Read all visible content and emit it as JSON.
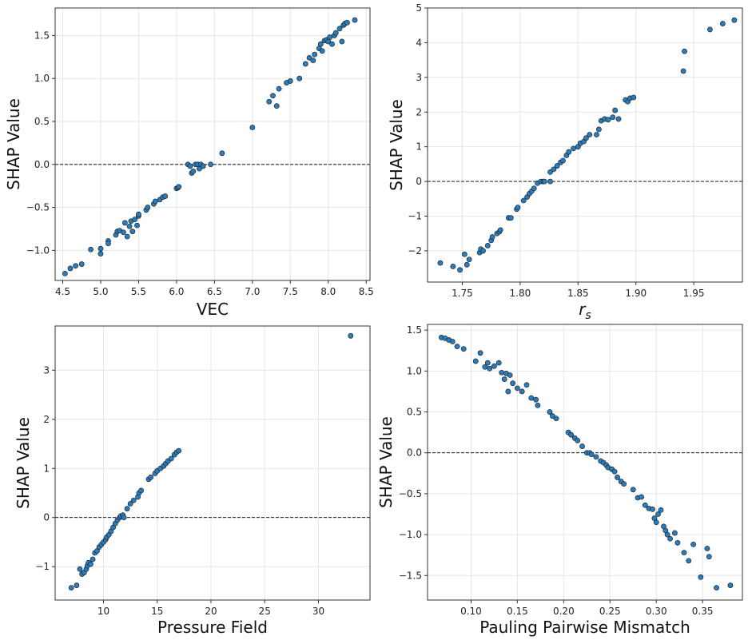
{
  "chart_data": [
    {
      "type": "scatter",
      "xlabel": "VEC",
      "ylabel": "SHAP Value",
      "xlim": [
        4.4,
        8.55
      ],
      "ylim": [
        -1.35,
        1.82
      ],
      "xticks": [
        4.5,
        5.0,
        5.5,
        6.0,
        6.5,
        7.0,
        7.5,
        8.0,
        8.5
      ],
      "xtick_labels": [
        "4.5",
        "5.0",
        "5.5",
        "6.0",
        "6.5",
        "7.0",
        "7.5",
        "8.0",
        "8.5"
      ],
      "yticks": [
        -1.0,
        -0.5,
        0.0,
        0.5,
        1.0,
        1.5
      ],
      "ytick_labels": [
        "−1.0",
        "−0.5",
        "0.0",
        "0.5",
        "1.0",
        "1.5"
      ],
      "reference_line_y": 0,
      "grid": true,
      "color": "#2b7bb9",
      "points": [
        [
          4.53,
          -1.27
        ],
        [
          4.6,
          -1.21
        ],
        [
          4.67,
          -1.18
        ],
        [
          4.75,
          -1.16
        ],
        [
          4.87,
          -0.99
        ],
        [
          5.0,
          -1.04
        ],
        [
          5.0,
          -0.98
        ],
        [
          5.1,
          -0.89
        ],
        [
          5.1,
          -0.92
        ],
        [
          5.2,
          -0.82
        ],
        [
          5.22,
          -0.78
        ],
        [
          5.25,
          -0.77
        ],
        [
          5.3,
          -0.79
        ],
        [
          5.32,
          -0.68
        ],
        [
          5.35,
          -0.84
        ],
        [
          5.38,
          -0.72
        ],
        [
          5.4,
          -0.66
        ],
        [
          5.42,
          -0.78
        ],
        [
          5.45,
          -0.64
        ],
        [
          5.48,
          -0.71
        ],
        [
          5.5,
          -0.6
        ],
        [
          5.5,
          -0.58
        ],
        [
          5.6,
          -0.53
        ],
        [
          5.62,
          -0.5
        ],
        [
          5.7,
          -0.46
        ],
        [
          5.72,
          -0.43
        ],
        [
          5.78,
          -0.41
        ],
        [
          5.82,
          -0.38
        ],
        [
          5.85,
          -0.37
        ],
        [
          6.0,
          -0.28
        ],
        [
          6.02,
          -0.27
        ],
        [
          6.03,
          -0.26
        ],
        [
          6.15,
          0.0
        ],
        [
          6.18,
          -0.02
        ],
        [
          6.2,
          -0.1
        ],
        [
          6.22,
          -0.08
        ],
        [
          6.25,
          0.0
        ],
        [
          6.28,
          0.0
        ],
        [
          6.3,
          -0.05
        ],
        [
          6.32,
          0.0
        ],
        [
          6.35,
          -0.02
        ],
        [
          6.45,
          0.0
        ],
        [
          6.6,
          0.13
        ],
        [
          7.0,
          0.43
        ],
        [
          7.22,
          0.73
        ],
        [
          7.27,
          0.8
        ],
        [
          7.32,
          0.68
        ],
        [
          7.35,
          0.88
        ],
        [
          7.45,
          0.95
        ],
        [
          7.5,
          0.97
        ],
        [
          7.62,
          1.0
        ],
        [
          7.7,
          1.17
        ],
        [
          7.75,
          1.24
        ],
        [
          7.8,
          1.21
        ],
        [
          7.82,
          1.28
        ],
        [
          7.88,
          1.35
        ],
        [
          7.9,
          1.4
        ],
        [
          7.92,
          1.32
        ],
        [
          7.95,
          1.44
        ],
        [
          7.98,
          1.45
        ],
        [
          8.0,
          1.43
        ],
        [
          8.02,
          1.48
        ],
        [
          8.05,
          1.4
        ],
        [
          8.08,
          1.5
        ],
        [
          8.1,
          1.53
        ],
        [
          8.15,
          1.58
        ],
        [
          8.18,
          1.43
        ],
        [
          8.2,
          1.62
        ],
        [
          8.22,
          1.64
        ],
        [
          8.25,
          1.65
        ],
        [
          8.35,
          1.68
        ]
      ]
    },
    {
      "type": "scatter",
      "xlabel": "r_s",
      "xlabel_main": "r",
      "xlabel_sub": "s",
      "ylabel": "SHAP Value",
      "xlim": [
        1.72,
        1.992
      ],
      "ylim": [
        -2.9,
        5.0
      ],
      "xticks": [
        1.75,
        1.8,
        1.85,
        1.9,
        1.95
      ],
      "xtick_labels": [
        "1.75",
        "1.80",
        "1.85",
        "1.90",
        "1.95"
      ],
      "yticks": [
        -2,
        -1,
        0,
        1,
        2,
        3,
        4,
        5
      ],
      "ytick_labels": [
        "−2",
        "−1",
        "0",
        "1",
        "2",
        "3",
        "4",
        "5"
      ],
      "reference_line_y": 0,
      "grid": true,
      "color": "#2b7bb9",
      "points": [
        [
          1.731,
          -2.35
        ],
        [
          1.742,
          -2.45
        ],
        [
          1.748,
          -2.55
        ],
        [
          1.752,
          -2.1
        ],
        [
          1.754,
          -2.4
        ],
        [
          1.756,
          -2.25
        ],
        [
          1.765,
          -2.05
        ],
        [
          1.766,
          -1.95
        ],
        [
          1.768,
          -2.0
        ],
        [
          1.772,
          -1.85
        ],
        [
          1.775,
          -1.7
        ],
        [
          1.776,
          -1.6
        ],
        [
          1.78,
          -1.5
        ],
        [
          1.782,
          -1.45
        ],
        [
          1.783,
          -1.4
        ],
        [
          1.79,
          -1.05
        ],
        [
          1.792,
          -1.05
        ],
        [
          1.797,
          -0.8
        ],
        [
          1.798,
          -0.75
        ],
        [
          1.803,
          -0.55
        ],
        [
          1.806,
          -0.45
        ],
        [
          1.808,
          -0.35
        ],
        [
          1.81,
          -0.28
        ],
        [
          1.812,
          -0.2
        ],
        [
          1.815,
          -0.05
        ],
        [
          1.818,
          0.0
        ],
        [
          1.82,
          0.0
        ],
        [
          1.821,
          0.0
        ],
        [
          1.826,
          0.0
        ],
        [
          1.826,
          0.27
        ],
        [
          1.829,
          0.35
        ],
        [
          1.832,
          0.45
        ],
        [
          1.835,
          0.55
        ],
        [
          1.837,
          0.6
        ],
        [
          1.84,
          0.75
        ],
        [
          1.842,
          0.85
        ],
        [
          1.846,
          0.95
        ],
        [
          1.85,
          1.0
        ],
        [
          1.852,
          1.1
        ],
        [
          1.855,
          1.15
        ],
        [
          1.857,
          1.25
        ],
        [
          1.86,
          1.35
        ],
        [
          1.866,
          1.35
        ],
        [
          1.868,
          1.5
        ],
        [
          1.87,
          1.75
        ],
        [
          1.873,
          1.8
        ],
        [
          1.876,
          1.78
        ],
        [
          1.88,
          1.85
        ],
        [
          1.882,
          2.05
        ],
        [
          1.885,
          1.8
        ],
        [
          1.891,
          2.35
        ],
        [
          1.893,
          2.3
        ],
        [
          1.895,
          2.4
        ],
        [
          1.898,
          2.42
        ],
        [
          1.941,
          3.18
        ],
        [
          1.942,
          3.75
        ],
        [
          1.964,
          4.38
        ],
        [
          1.975,
          4.55
        ],
        [
          1.985,
          4.65
        ]
      ]
    },
    {
      "type": "scatter",
      "xlabel": "Pressure Field",
      "ylabel": "SHAP Value",
      "xlim": [
        5.5,
        34.8
      ],
      "ylim": [
        -1.68,
        3.9
      ],
      "xticks": [
        10,
        15,
        20,
        25,
        30
      ],
      "xtick_labels": [
        "10",
        "15",
        "20",
        "25",
        "30"
      ],
      "yticks": [
        -1,
        0,
        1,
        2,
        3
      ],
      "ytick_labels": [
        "−1",
        "0",
        "1",
        "2",
        "3"
      ],
      "reference_line_y": 0,
      "grid": true,
      "color": "#2b7bb9",
      "points": [
        [
          7.0,
          -1.43
        ],
        [
          7.5,
          -1.38
        ],
        [
          7.8,
          -1.05
        ],
        [
          8.0,
          -1.15
        ],
        [
          8.2,
          -1.12
        ],
        [
          8.4,
          -1.05
        ],
        [
          8.5,
          -0.98
        ],
        [
          8.6,
          -0.92
        ],
        [
          8.8,
          -0.95
        ],
        [
          9.0,
          -0.85
        ],
        [
          9.2,
          -0.72
        ],
        [
          9.4,
          -0.68
        ],
        [
          9.6,
          -0.6
        ],
        [
          9.8,
          -0.55
        ],
        [
          10.0,
          -0.5
        ],
        [
          10.2,
          -0.45
        ],
        [
          10.3,
          -0.4
        ],
        [
          10.5,
          -0.35
        ],
        [
          10.7,
          -0.28
        ],
        [
          10.9,
          -0.2
        ],
        [
          11.1,
          -0.12
        ],
        [
          11.3,
          -0.05
        ],
        [
          11.5,
          0.0
        ],
        [
          11.6,
          0.03
        ],
        [
          11.8,
          0.05
        ],
        [
          11.9,
          0.0
        ],
        [
          12.2,
          0.18
        ],
        [
          12.5,
          0.28
        ],
        [
          12.8,
          0.35
        ],
        [
          13.2,
          0.42
        ],
        [
          13.3,
          0.5
        ],
        [
          13.5,
          0.55
        ],
        [
          14.2,
          0.78
        ],
        [
          14.4,
          0.82
        ],
        [
          14.8,
          0.9
        ],
        [
          15.0,
          0.95
        ],
        [
          15.3,
          1.0
        ],
        [
          15.6,
          1.05
        ],
        [
          15.8,
          1.1
        ],
        [
          16.0,
          1.15
        ],
        [
          16.3,
          1.2
        ],
        [
          16.6,
          1.28
        ],
        [
          16.8,
          1.33
        ],
        [
          17.0,
          1.36
        ],
        [
          33.0,
          3.7
        ]
      ]
    },
    {
      "type": "scatter",
      "xlabel": "Pauling Pairwise Mismatch",
      "ylabel": "SHAP Value",
      "xlim": [
        0.053,
        0.393
      ],
      "ylim": [
        -1.8,
        1.57
      ],
      "xticks": [
        0.1,
        0.15,
        0.2,
        0.25,
        0.3,
        0.35
      ],
      "xtick_labels": [
        "0.10",
        "0.15",
        "0.20",
        "0.25",
        "0.30",
        "0.35"
      ],
      "yticks": [
        -1.5,
        -1.0,
        -0.5,
        0.0,
        0.5,
        1.0,
        1.5
      ],
      "ytick_labels": [
        "−1.5",
        "−1.0",
        "−0.5",
        "0.0",
        "0.5",
        "1.0",
        "1.5"
      ],
      "reference_line_y": 0,
      "grid": true,
      "color": "#2b7bb9",
      "points": [
        [
          0.068,
          1.41
        ],
        [
          0.072,
          1.4
        ],
        [
          0.076,
          1.38
        ],
        [
          0.08,
          1.36
        ],
        [
          0.085,
          1.3
        ],
        [
          0.092,
          1.27
        ],
        [
          0.105,
          1.12
        ],
        [
          0.11,
          1.22
        ],
        [
          0.115,
          1.05
        ],
        [
          0.118,
          1.1
        ],
        [
          0.12,
          1.03
        ],
        [
          0.125,
          1.06
        ],
        [
          0.13,
          1.1
        ],
        [
          0.133,
          0.98
        ],
        [
          0.136,
          0.9
        ],
        [
          0.138,
          0.97
        ],
        [
          0.14,
          0.75
        ],
        [
          0.142,
          0.95
        ],
        [
          0.145,
          0.85
        ],
        [
          0.15,
          0.79
        ],
        [
          0.155,
          0.75
        ],
        [
          0.16,
          0.83
        ],
        [
          0.165,
          0.67
        ],
        [
          0.17,
          0.65
        ],
        [
          0.172,
          0.58
        ],
        [
          0.185,
          0.5
        ],
        [
          0.188,
          0.45
        ],
        [
          0.192,
          0.42
        ],
        [
          0.205,
          0.25
        ],
        [
          0.208,
          0.22
        ],
        [
          0.212,
          0.18
        ],
        [
          0.215,
          0.15
        ],
        [
          0.22,
          0.08
        ],
        [
          0.225,
          0.0
        ],
        [
          0.228,
          0.0
        ],
        [
          0.23,
          -0.02
        ],
        [
          0.235,
          -0.05
        ],
        [
          0.24,
          -0.1
        ],
        [
          0.243,
          -0.12
        ],
        [
          0.246,
          -0.15
        ],
        [
          0.248,
          -0.18
        ],
        [
          0.252,
          -0.2
        ],
        [
          0.255,
          -0.23
        ],
        [
          0.258,
          -0.3
        ],
        [
          0.262,
          -0.35
        ],
        [
          0.265,
          -0.38
        ],
        [
          0.275,
          -0.45
        ],
        [
          0.28,
          -0.55
        ],
        [
          0.284,
          -0.54
        ],
        [
          0.288,
          -0.64
        ],
        [
          0.292,
          -0.68
        ],
        [
          0.296,
          -0.69
        ],
        [
          0.298,
          -0.8
        ],
        [
          0.3,
          -0.85
        ],
        [
          0.302,
          -0.75
        ],
        [
          0.305,
          -0.7
        ],
        [
          0.308,
          -0.9
        ],
        [
          0.31,
          -0.95
        ],
        [
          0.312,
          -1.0
        ],
        [
          0.315,
          -1.05
        ],
        [
          0.32,
          -0.98
        ],
        [
          0.323,
          -1.1
        ],
        [
          0.33,
          -1.22
        ],
        [
          0.335,
          -1.32
        ],
        [
          0.34,
          -1.12
        ],
        [
          0.348,
          -1.52
        ],
        [
          0.355,
          -1.17
        ],
        [
          0.357,
          -1.27
        ],
        [
          0.365,
          -1.65
        ],
        [
          0.38,
          -1.62
        ]
      ]
    }
  ]
}
